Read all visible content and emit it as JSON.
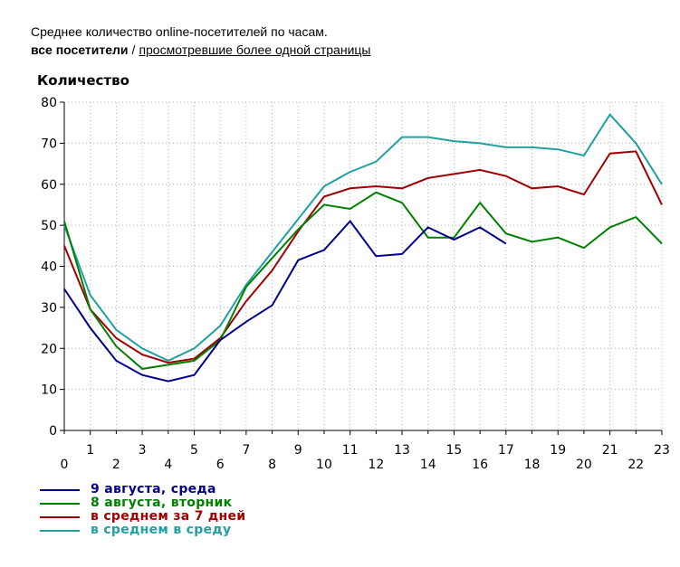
{
  "header": {
    "title": "Среднее количество online-посетителей по часам.",
    "filter_active": "все посетители",
    "filter_separator": "/",
    "filter_link": "просмотревшие более одной страницы"
  },
  "chart_data": {
    "type": "line",
    "title": "",
    "ylabel": "Количество",
    "xlabel": "",
    "x": [
      0,
      1,
      2,
      3,
      4,
      5,
      6,
      7,
      8,
      9,
      10,
      11,
      12,
      13,
      14,
      15,
      16,
      17,
      18,
      19,
      20,
      21,
      22,
      23
    ],
    "x_tick_labels": [
      "0",
      "1",
      "2",
      "3",
      "4",
      "5",
      "6",
      "7",
      "8",
      "9",
      "10",
      "11",
      "12",
      "13",
      "14",
      "15",
      "16",
      "17",
      "18",
      "19",
      "20",
      "21",
      "22",
      "23"
    ],
    "ylim": [
      0,
      80
    ],
    "y_ticks": [
      0,
      10,
      20,
      30,
      40,
      50,
      60,
      70,
      80
    ],
    "grid": true,
    "legend_position": "bottom-left",
    "series": [
      {
        "name": "9 августа, среда",
        "color": "#00008b",
        "values": [
          34.5,
          25,
          17,
          13.5,
          12,
          13.5,
          22,
          26.5,
          30.5,
          41.5,
          44,
          51,
          42.5,
          43,
          49.5,
          46.5,
          49.5,
          45.5,
          null,
          null,
          null,
          null,
          null,
          null
        ]
      },
      {
        "name": "8 августа, вторник",
        "color": "#008000",
        "values": [
          51,
          29.5,
          20.5,
          15,
          16,
          17,
          22,
          35,
          42,
          49,
          55,
          54,
          58,
          55.5,
          47,
          47,
          55.5,
          48,
          46,
          47,
          44.5,
          49.5,
          52,
          45.5
        ]
      },
      {
        "name": "в среднем за 7 дней",
        "color": "#a00000",
        "values": [
          45,
          29.5,
          22.5,
          18.5,
          16.5,
          17.5,
          22.5,
          31.5,
          39,
          48.5,
          57,
          59,
          59.5,
          59,
          61.5,
          62.5,
          63.5,
          62,
          59,
          59.5,
          57.5,
          67.5,
          68,
          55
        ]
      },
      {
        "name": "в среднем в среду",
        "color": "#20a0a0",
        "values": [
          50,
          33,
          24.5,
          20,
          17,
          20,
          25.5,
          35.5,
          43.5,
          51.5,
          59.5,
          63,
          65.5,
          71.5,
          71.5,
          70.5,
          70,
          69,
          69,
          68.5,
          67,
          77,
          70,
          60
        ]
      }
    ]
  }
}
